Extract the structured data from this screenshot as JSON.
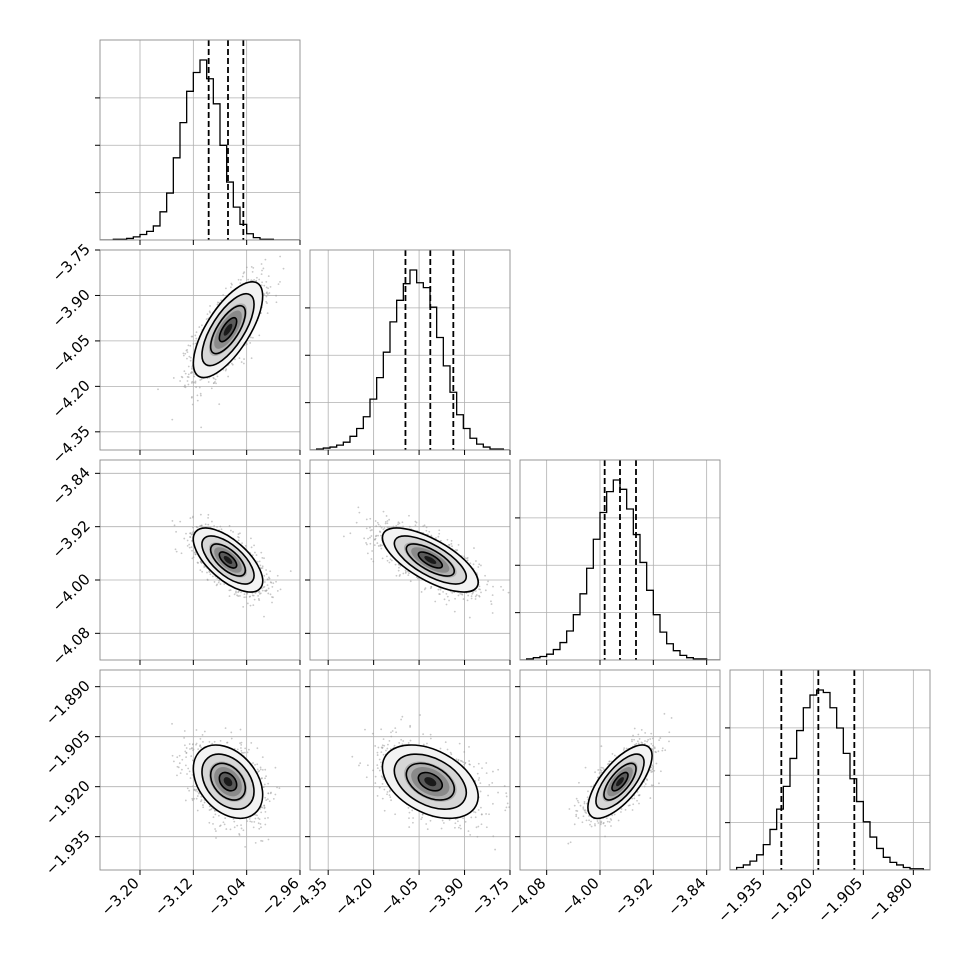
{
  "chart_data": {
    "type": "corner",
    "n_params": 4,
    "grid": true,
    "quantiles": [
      0.16,
      0.5,
      0.84
    ],
    "parameters": [
      {
        "range": [
          -3.26,
          -2.96
        ],
        "ticks": [
          "-3.20",
          "-3.12",
          "-3.04",
          "-2.96"
        ],
        "tick_values": [
          -3.2,
          -3.12,
          -3.04,
          -2.96
        ],
        "quantile_values": [
          -3.097,
          -3.068,
          -3.045
        ]
      },
      {
        "range": [
          -4.41,
          -3.75
        ],
        "ticks": [
          "-4.35",
          "-4.20",
          "-4.05",
          "-3.90",
          "-3.75"
        ],
        "tick_values": [
          -4.35,
          -4.2,
          -4.05,
          -3.9,
          -3.75
        ],
        "quantile_values": [
          -4.095,
          -4.013,
          -3.937
        ]
      },
      {
        "range": [
          -4.12,
          -3.82
        ],
        "ticks": [
          "-4.08",
          "-4.00",
          "-3.92",
          "-3.84"
        ],
        "tick_values": [
          -4.08,
          -4.0,
          -3.92,
          -3.84
        ],
        "quantile_values": [
          -3.993,
          -3.97,
          -3.946
        ]
      },
      {
        "range": [
          -1.945,
          -1.885
        ],
        "ticks": [
          "-1.935",
          "-1.920",
          "-1.905",
          "-1.890"
        ],
        "tick_values": [
          -1.935,
          -1.92,
          -1.905,
          -1.89
        ],
        "quantile_values": [
          -1.9296,
          -1.9185,
          -1.9077
        ]
      }
    ],
    "histograms": [
      {
        "param": 0,
        "bin_edges": [
          -3.26,
          -3.25,
          -3.24,
          -3.23,
          -3.22,
          -3.21,
          -3.2,
          -3.19,
          -3.18,
          -3.17,
          -3.16,
          -3.15,
          -3.14,
          -3.13,
          -3.12,
          -3.11,
          -3.1,
          -3.09,
          -3.08,
          -3.07,
          -3.06,
          -3.05,
          -3.04,
          -3.03,
          -3.02,
          -3.01,
          -3.0,
          -2.99,
          -2.98,
          -2.97,
          -2.96
        ],
        "counts": [
          0,
          0,
          1,
          1,
          2,
          4,
          7,
          11,
          18,
          36,
          60,
          105,
          150,
          190,
          214,
          230,
          206,
          174,
          121,
          74,
          42,
          20,
          8,
          3,
          1,
          1,
          0,
          0,
          0,
          0
        ]
      },
      {
        "param": 1,
        "bin_edges": [
          -4.41,
          -4.388,
          -4.366,
          -4.344,
          -4.322,
          -4.3,
          -4.278,
          -4.256,
          -4.234,
          -4.212,
          -4.19,
          -4.168,
          -4.146,
          -4.124,
          -4.102,
          -4.08,
          -4.058,
          -4.036,
          -4.014,
          -3.992,
          -3.97,
          -3.948,
          -3.926,
          -3.904,
          -3.882,
          -3.86,
          -3.838,
          -3.816,
          -3.794,
          -3.772,
          -3.75
        ],
        "counts": [
          0,
          1,
          2,
          3,
          5,
          8,
          14,
          22,
          34,
          52,
          74,
          100,
          131,
          153,
          170,
          184,
          171,
          166,
          146,
          115,
          86,
          59,
          36,
          22,
          12,
          6,
          3,
          1,
          1,
          0
        ]
      },
      {
        "param": 2,
        "bin_edges": [
          -4.12,
          -4.11,
          -4.1,
          -4.09,
          -4.08,
          -4.07,
          -4.06,
          -4.05,
          -4.04,
          -4.03,
          -4.02,
          -4.01,
          -4.0,
          -3.99,
          -3.98,
          -3.97,
          -3.96,
          -3.95,
          -3.94,
          -3.93,
          -3.92,
          -3.91,
          -3.9,
          -3.89,
          -3.88,
          -3.87,
          -3.86,
          -3.85,
          -3.84,
          -3.83,
          -3.82
        ],
        "counts": [
          0,
          1,
          2,
          3,
          5,
          9,
          15,
          25,
          39,
          57,
          79,
          104,
          127,
          145,
          155,
          147,
          130,
          108,
          84,
          60,
          39,
          24,
          14,
          8,
          4,
          2,
          1,
          1,
          0,
          0
        ]
      },
      {
        "param": 3,
        "bin_edges": [
          -1.945,
          -1.943,
          -1.941,
          -1.939,
          -1.937,
          -1.935,
          -1.933,
          -1.931,
          -1.929,
          -1.927,
          -1.925,
          -1.923,
          -1.921,
          -1.919,
          -1.917,
          -1.915,
          -1.913,
          -1.911,
          -1.909,
          -1.907,
          -1.905,
          -1.903,
          -1.901,
          -1.899,
          -1.897,
          -1.895,
          -1.893,
          -1.891,
          -1.889,
          -1.887,
          -1.885
        ],
        "counts": [
          0,
          2,
          4,
          7,
          12,
          20,
          32,
          48,
          66,
          88,
          110,
          128,
          138,
          142,
          140,
          128,
          112,
          92,
          72,
          54,
          38,
          26,
          17,
          10,
          6,
          4,
          2,
          1,
          1,
          0
        ]
      }
    ],
    "pairs": [
      {
        "x": 0,
        "y": 1,
        "mean": [
          -3.068,
          -4.013
        ],
        "std": [
          0.026,
          0.079
        ],
        "corr": 0.7
      },
      {
        "x": 0,
        "y": 2,
        "mean": [
          -3.068,
          -3.97
        ],
        "std": [
          0.026,
          0.024
        ],
        "corr": -0.65
      },
      {
        "x": 1,
        "y": 2,
        "mean": [
          -4.013,
          -3.97
        ],
        "std": [
          0.079,
          0.024
        ],
        "corr": -0.7
      },
      {
        "x": 0,
        "y": 3,
        "mean": [
          -3.068,
          -1.9185
        ],
        "std": [
          0.026,
          0.0055
        ],
        "corr": -0.35
      },
      {
        "x": 1,
        "y": 3,
        "mean": [
          -4.013,
          -1.9185
        ],
        "std": [
          0.079,
          0.0055
        ],
        "corr": -0.4
      },
      {
        "x": 2,
        "y": 3,
        "mean": [
          -3.97,
          -1.9185
        ],
        "std": [
          0.024,
          0.0055
        ],
        "corr": 0.7
      }
    ],
    "contour_levels_sigma": [
      0.5,
      1.0,
      1.5,
      2.0
    ],
    "colors": {
      "line": "#000000",
      "grid": "#b0b0b0",
      "points": "#9a9a9a",
      "density": "#000000"
    }
  }
}
